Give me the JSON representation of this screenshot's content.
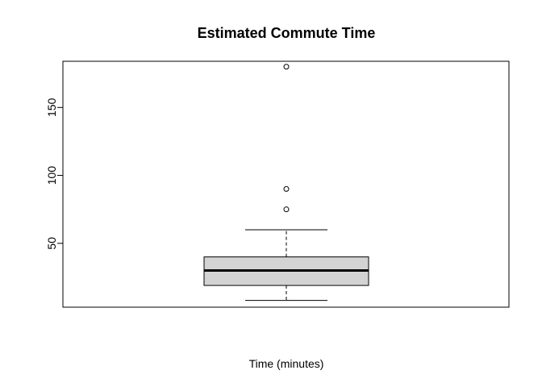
{
  "chart_data": {
    "type": "boxplot",
    "title": "Estimated Commute Time",
    "xlabel": "Time (minutes)",
    "ylabel": "",
    "ylim": [
      3,
      184
    ],
    "yticks": [
      50,
      100,
      150
    ],
    "ytick_labels": [
      "50",
      "100",
      "150"
    ],
    "grid": false,
    "legend": "none",
    "box": {
      "min": 8,
      "q1": 19,
      "median": 30,
      "q3": 40,
      "max": 60,
      "outliers": [
        75,
        90,
        180
      ]
    },
    "colors": {
      "box_fill": "#d3d3d3",
      "stroke": "#000000"
    }
  }
}
